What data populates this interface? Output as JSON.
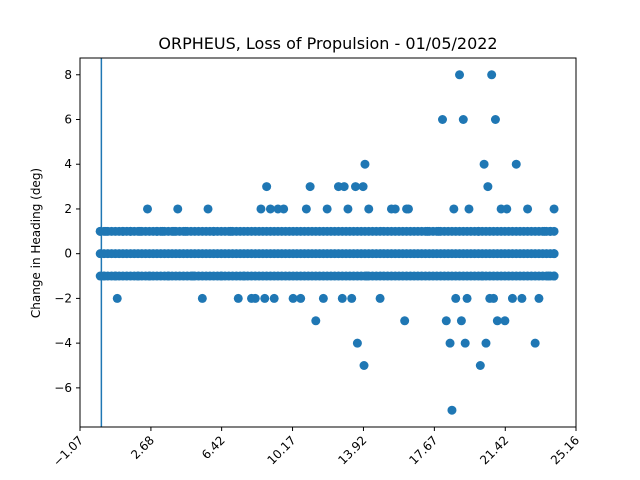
{
  "chart_data": {
    "type": "scatter",
    "title": "ORPHEUS, Loss of Propulsion - 01/05/2022",
    "xlabel": "",
    "ylabel": "Change in Heading (deg)",
    "xlim": [
      -1.07,
      25.16
    ],
    "ylim": [
      -7.75,
      8.75
    ],
    "xticks": [
      -1.07,
      2.68,
      6.42,
      10.17,
      13.92,
      17.67,
      21.42,
      25.16
    ],
    "xtick_labels": [
      "−1.07",
      "2.68",
      "6.42",
      "10.17",
      "13.92",
      "17.67",
      "21.42",
      "25.16"
    ],
    "yticks": [
      -6,
      -4,
      -2,
      0,
      2,
      4,
      6,
      8
    ],
    "ytick_labels": [
      "−6",
      "−4",
      "−2",
      "0",
      "2",
      "4",
      "6",
      "8"
    ],
    "grid": false,
    "marker_color": "#1f77b4",
    "vertical_line_x": 0.06,
    "dense_x_range": [
      0.0,
      24.0
    ],
    "dense_y_levels": [
      -1,
      0,
      1
    ],
    "points": [
      [
        0.0,
        1
      ],
      [
        0.3,
        1
      ],
      [
        0.2,
        -1
      ],
      [
        0.8,
        -1
      ],
      [
        0.9,
        -2
      ],
      [
        1.2,
        1
      ],
      [
        1.6,
        1
      ],
      [
        2.1,
        1
      ],
      [
        2.5,
        2
      ],
      [
        2.0,
        -1
      ],
      [
        2.6,
        -1
      ],
      [
        3.0,
        1
      ],
      [
        3.3,
        1
      ],
      [
        3.6,
        -1
      ],
      [
        4.1,
        2
      ],
      [
        3.9,
        1
      ],
      [
        4.5,
        1
      ],
      [
        4.9,
        -1
      ],
      [
        5.4,
        -2
      ],
      [
        5.7,
        2
      ],
      [
        6.0,
        1
      ],
      [
        6.4,
        -1
      ],
      [
        6.9,
        1
      ],
      [
        7.3,
        -2
      ],
      [
        7.6,
        -1
      ],
      [
        8.0,
        -2
      ],
      [
        8.2,
        -2
      ],
      [
        8.5,
        2
      ],
      [
        8.8,
        3
      ],
      [
        8.7,
        -2
      ],
      [
        9.2,
        -2
      ],
      [
        9.0,
        2
      ],
      [
        9.4,
        2
      ],
      [
        9.7,
        2
      ],
      [
        10.2,
        -2
      ],
      [
        10.6,
        -2
      ],
      [
        10.9,
        2
      ],
      [
        11.1,
        3
      ],
      [
        11.4,
        -3
      ],
      [
        11.8,
        -2
      ],
      [
        12.0,
        2
      ],
      [
        12.6,
        3
      ],
      [
        12.9,
        3
      ],
      [
        12.8,
        -2
      ],
      [
        13.3,
        -2
      ],
      [
        13.1,
        2
      ],
      [
        13.5,
        3
      ],
      [
        13.6,
        -4
      ],
      [
        13.9,
        3
      ],
      [
        14.0,
        4
      ],
      [
        13.95,
        -5
      ],
      [
        14.2,
        2
      ],
      [
        14.1,
        -1
      ],
      [
        14.8,
        -2
      ],
      [
        15.4,
        2
      ],
      [
        15.6,
        2
      ],
      [
        16.2,
        2
      ],
      [
        16.3,
        2
      ],
      [
        16.1,
        -3
      ],
      [
        17.3,
        1
      ],
      [
        17.9,
        1
      ],
      [
        18.1,
        6
      ],
      [
        18.3,
        -3
      ],
      [
        18.5,
        -4
      ],
      [
        18.7,
        2
      ],
      [
        18.6,
        -7
      ],
      [
        18.8,
        -2
      ],
      [
        19.0,
        8
      ],
      [
        19.1,
        -3
      ],
      [
        19.2,
        6
      ],
      [
        19.3,
        -4
      ],
      [
        19.4,
        -2
      ],
      [
        19.5,
        2
      ],
      [
        20.0,
        1
      ],
      [
        20.1,
        -5
      ],
      [
        20.2,
        -1
      ],
      [
        20.3,
        4
      ],
      [
        20.4,
        -4
      ],
      [
        20.5,
        3
      ],
      [
        20.6,
        -2
      ],
      [
        20.7,
        8
      ],
      [
        20.8,
        -2
      ],
      [
        20.9,
        6
      ],
      [
        21.0,
        -3
      ],
      [
        21.2,
        2
      ],
      [
        21.4,
        -3
      ],
      [
        21.5,
        2
      ],
      [
        21.8,
        -2
      ],
      [
        22.0,
        4
      ],
      [
        22.3,
        -2
      ],
      [
        22.6,
        2
      ],
      [
        23.0,
        -4
      ],
      [
        23.2,
        -2
      ],
      [
        23.5,
        1
      ],
      [
        23.8,
        1
      ],
      [
        24.0,
        2
      ],
      [
        23.7,
        -1
      ],
      [
        24.0,
        -1
      ],
      [
        24.0,
        0
      ]
    ]
  }
}
